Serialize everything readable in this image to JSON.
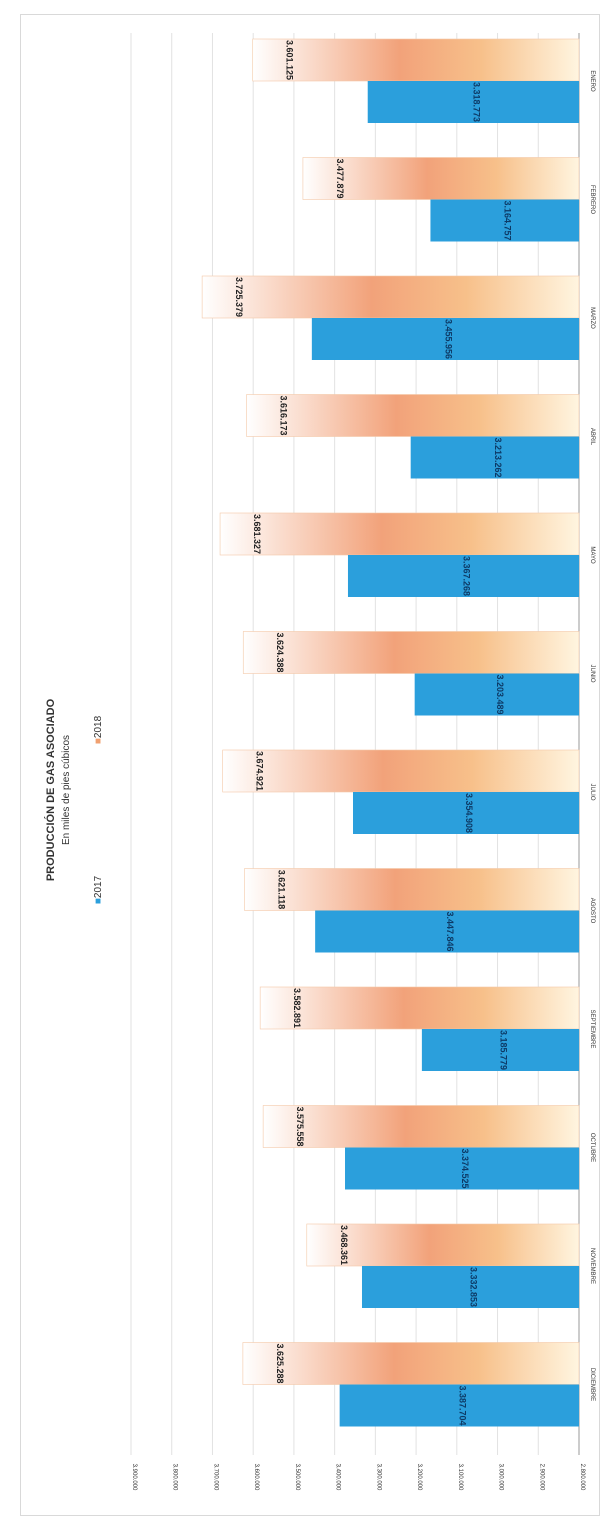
{
  "chart_data": {
    "type": "bar",
    "title": "PRODUCCIÓN DE GAS ASOCIADO",
    "subtitle": "En miles de pies cúbicos",
    "categories": [
      "ENERO",
      "FEBRERO",
      "MARZO",
      "ABRIL",
      "MAYO",
      "JUNIO",
      "JULIO",
      "AGOSTO",
      "SEPTIEMBRE",
      "OCTUBRE",
      "NOVIEMBRE",
      "DICIEMBRE"
    ],
    "series": [
      {
        "name": "2017",
        "color": "#2b9fdc",
        "values": [
          3318773,
          3164757,
          3455956,
          3213262,
          3367268,
          3203489,
          3354908,
          3447846,
          3185779,
          3374525,
          3332853,
          3387704
        ],
        "labels": [
          "3.318.773",
          "3.164.757",
          "3.455.956",
          "3.213.262",
          "3.367.268",
          "3.203.489",
          "3.354.908",
          "3.447.846",
          "3.185.779",
          "3.374.525",
          "3.332.853",
          "3.387.704"
        ]
      },
      {
        "name": "2018",
        "color": "#f0a070",
        "values": [
          3601125,
          3477879,
          3725379,
          3616173,
          3681327,
          3624388,
          3674921,
          3621118,
          3582891,
          3575558,
          3468361,
          3625288
        ],
        "labels": [
          "3.601.125",
          "3.477.879",
          "3.725.379",
          "3.616.173",
          "3.681.327",
          "3.624.388",
          "3.674.921",
          "3.621.118",
          "3.582.891",
          "3.575.558",
          "3.468.361",
          "3.625.288"
        ]
      }
    ],
    "ylim": [
      2800000,
      3900000
    ],
    "yticks": [
      "2.800.000",
      "2.900.000",
      "3.000.000",
      "3.100.000",
      "3.200.000",
      "3.300.000",
      "3.400.000",
      "3.500.000",
      "3.600.000",
      "3.700.000",
      "3.800.000",
      "3.900.000"
    ],
    "grid": true,
    "legend": "top",
    "orientation": "rotated-90-clockwise"
  }
}
